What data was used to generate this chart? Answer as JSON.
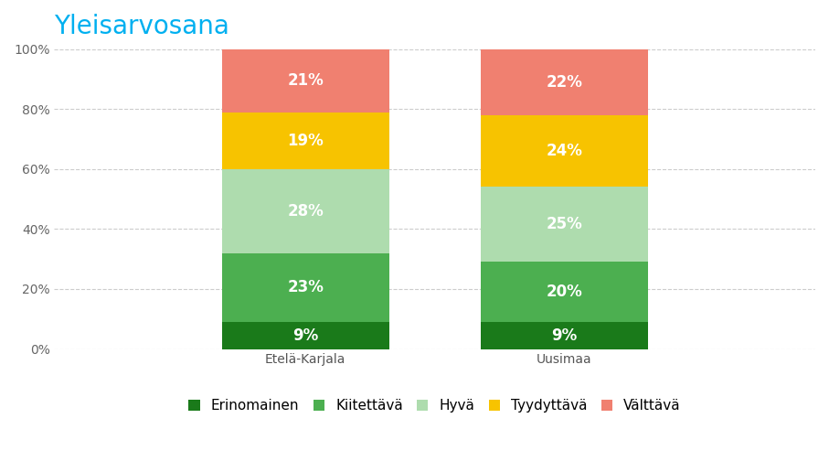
{
  "title": "Yleisarvosana",
  "title_color": "#00b0f0",
  "categories": [
    "Etelä-Karjala",
    "Uusimaa"
  ],
  "series": [
    {
      "label": "Erinomainen",
      "color": "#1a7a1a",
      "values": [
        9,
        9
      ]
    },
    {
      "label": "Kiitettävä",
      "color": "#4caf50",
      "values": [
        23,
        20
      ]
    },
    {
      "label": "Hyvä",
      "color": "#aedcae",
      "values": [
        28,
        25
      ]
    },
    {
      "label": "Tyydyttävä",
      "color": "#f7c300",
      "values": [
        19,
        24
      ]
    },
    {
      "label": "Välttävä",
      "color": "#f08070",
      "values": [
        21,
        22
      ]
    }
  ],
  "ylim": [
    0,
    100
  ],
  "ytick_labels": [
    "0%",
    "20%",
    "40%",
    "60%",
    "80%",
    "100%"
  ],
  "ytick_values": [
    0,
    20,
    40,
    60,
    80,
    100
  ],
  "background_color": "#ffffff",
  "bar_width": 0.22,
  "bar_positions": [
    0.33,
    0.67
  ],
  "xlim": [
    0.0,
    1.0
  ],
  "label_fontsize": 12,
  "title_fontsize": 20,
  "legend_fontsize": 11,
  "axis_label_fontsize": 10,
  "text_color_white": "#ffffff",
  "grid_color": "#cccccc"
}
